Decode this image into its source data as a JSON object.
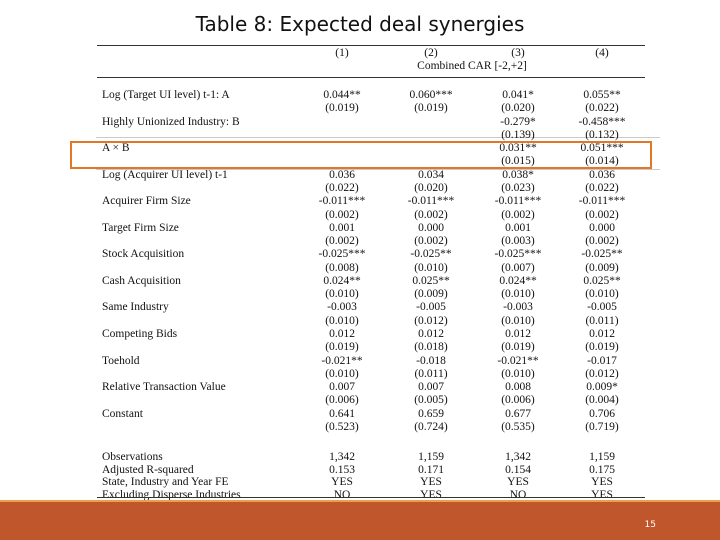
{
  "title": "Table 8: Expected deal synergies",
  "columns": [
    "(1)",
    "(2)",
    "(3)",
    "(4)"
  ],
  "dep_var": "Combined CAR [-2,+2]",
  "rows": [
    {
      "label": "Log (Target UI level) t-1: A",
      "values": [
        "0.044**",
        "0.060***",
        "0.041*",
        "0.055**"
      ]
    },
    {
      "label": "",
      "values": [
        "(0.019)",
        "(0.019)",
        "(0.020)",
        "(0.022)"
      ]
    },
    {
      "label": "Highly Unionized Industry: B",
      "values": [
        "",
        "",
        "-0.279*",
        "-0.458***"
      ]
    },
    {
      "label": "",
      "values": [
        "",
        "",
        "(0.139)",
        "(0.132)"
      ]
    },
    {
      "label": "A × B",
      "values": [
        "",
        "",
        "0.031**",
        "0.051***"
      ]
    },
    {
      "label": "",
      "values": [
        "",
        "",
        "(0.015)",
        "(0.014)"
      ]
    },
    {
      "label": "Log (Acquirer UI level) t-1",
      "values": [
        "0.036",
        "0.034",
        "0.038*",
        "0.036"
      ]
    },
    {
      "label": "",
      "values": [
        "(0.022)",
        "(0.020)",
        "(0.023)",
        "(0.022)"
      ]
    },
    {
      "label": "Acquirer Firm Size",
      "values": [
        "-0.011***",
        "-0.011***",
        "-0.011***",
        "-0.011***"
      ]
    },
    {
      "label": "",
      "values": [
        "(0.002)",
        "(0.002)",
        "(0.002)",
        "(0.002)"
      ]
    },
    {
      "label": "Target Firm Size",
      "values": [
        "0.001",
        "0.000",
        "0.001",
        "0.000"
      ]
    },
    {
      "label": "",
      "values": [
        "(0.002)",
        "(0.002)",
        "(0.003)",
        "(0.002)"
      ]
    },
    {
      "label": "Stock Acquisition",
      "values": [
        "-0.025***",
        "-0.025**",
        "-0.025***",
        "-0.025**"
      ]
    },
    {
      "label": "",
      "values": [
        "(0.008)",
        "(0.010)",
        "(0.007)",
        "(0.009)"
      ]
    },
    {
      "label": "Cash Acquisition",
      "values": [
        "0.024**",
        "0.025**",
        "0.024**",
        "0.025**"
      ]
    },
    {
      "label": "",
      "values": [
        "(0.010)",
        "(0.009)",
        "(0.010)",
        "(0.010)"
      ]
    },
    {
      "label": "Same Industry",
      "values": [
        "-0.003",
        "-0.005",
        "-0.003",
        "-0.005"
      ]
    },
    {
      "label": "",
      "values": [
        "(0.010)",
        "(0.012)",
        "(0.010)",
        "(0.011)"
      ]
    },
    {
      "label": "Competing Bids",
      "values": [
        "0.012",
        "0.012",
        "0.012",
        "0.012"
      ]
    },
    {
      "label": "",
      "values": [
        "(0.019)",
        "(0.018)",
        "(0.019)",
        "(0.019)"
      ]
    },
    {
      "label": "Toehold",
      "values": [
        "-0.021**",
        "-0.018",
        "-0.021**",
        "-0.017"
      ]
    },
    {
      "label": "",
      "values": [
        "(0.010)",
        "(0.011)",
        "(0.010)",
        "(0.012)"
      ]
    },
    {
      "label": "Relative Transaction Value",
      "values": [
        "0.007",
        "0.007",
        "0.008",
        "0.009*"
      ]
    },
    {
      "label": "",
      "values": [
        "(0.006)",
        "(0.005)",
        "(0.006)",
        "(0.004)"
      ]
    },
    {
      "label": "Constant",
      "values": [
        "0.641",
        "0.659",
        "0.677",
        "0.706"
      ]
    },
    {
      "label": "",
      "values": [
        "(0.523)",
        "(0.724)",
        "(0.535)",
        "(0.719)"
      ]
    }
  ],
  "stats": [
    {
      "label": "Observations",
      "values": [
        "1,342",
        "1,159",
        "1,342",
        "1,159"
      ]
    },
    {
      "label": "Adjusted R-squared",
      "values": [
        "0.153",
        "0.171",
        "0.154",
        "0.175"
      ]
    },
    {
      "label": "State, Industry and Year FE",
      "values": [
        "YES",
        "YES",
        "YES",
        "YES"
      ]
    },
    {
      "label": "Excluding Disperse Industries",
      "values": [
        "NO",
        "YES",
        "NO",
        "YES"
      ]
    }
  ],
  "page_number": "15",
  "colors": {
    "highlight": "#e07828",
    "footer": "#c0562b",
    "footer_line": "#e8a24a"
  }
}
